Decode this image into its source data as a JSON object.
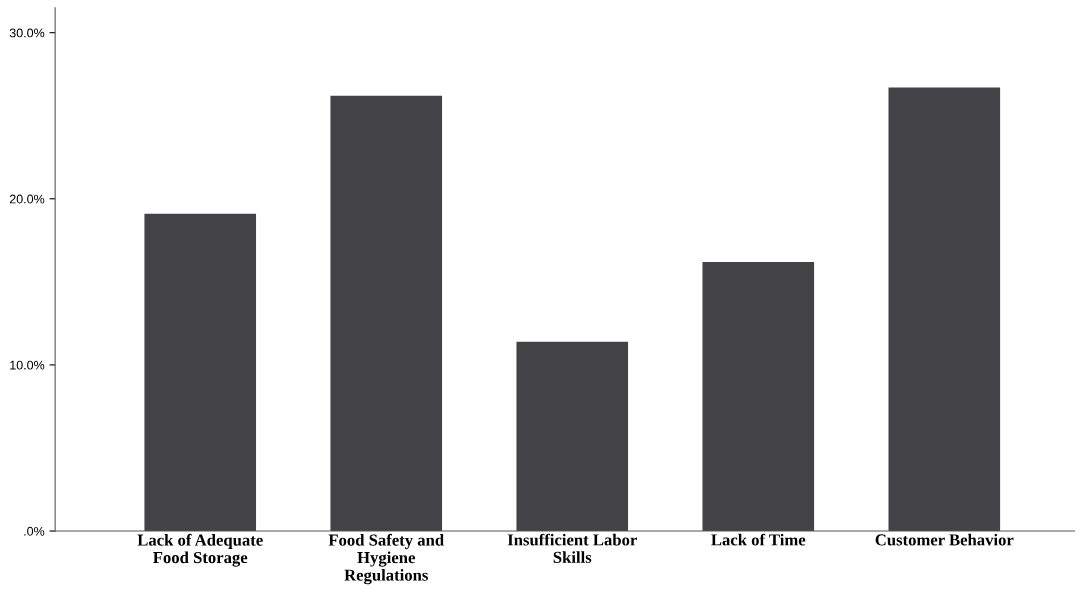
{
  "chart_data": {
    "type": "bar",
    "categories": [
      "Lack of Adequate\nFood Storage",
      "Food Safety and\nHygiene\nRegulations",
      "Insufficient Labor\nSkills",
      "Lack of Time",
      "Customer Behavior"
    ],
    "values": [
      19.1,
      26.2,
      11.4,
      16.2,
      26.7
    ],
    "color": "#434345",
    "ylim": [
      0,
      31.5
    ],
    "yticks": [
      {
        "value": 0,
        "label": ".0%"
      },
      {
        "value": 10,
        "label": "10.0%"
      },
      {
        "value": 20,
        "label": "20.0%"
      },
      {
        "value": 30,
        "label": "30.0%"
      }
    ],
    "grid": false,
    "legend": false
  }
}
